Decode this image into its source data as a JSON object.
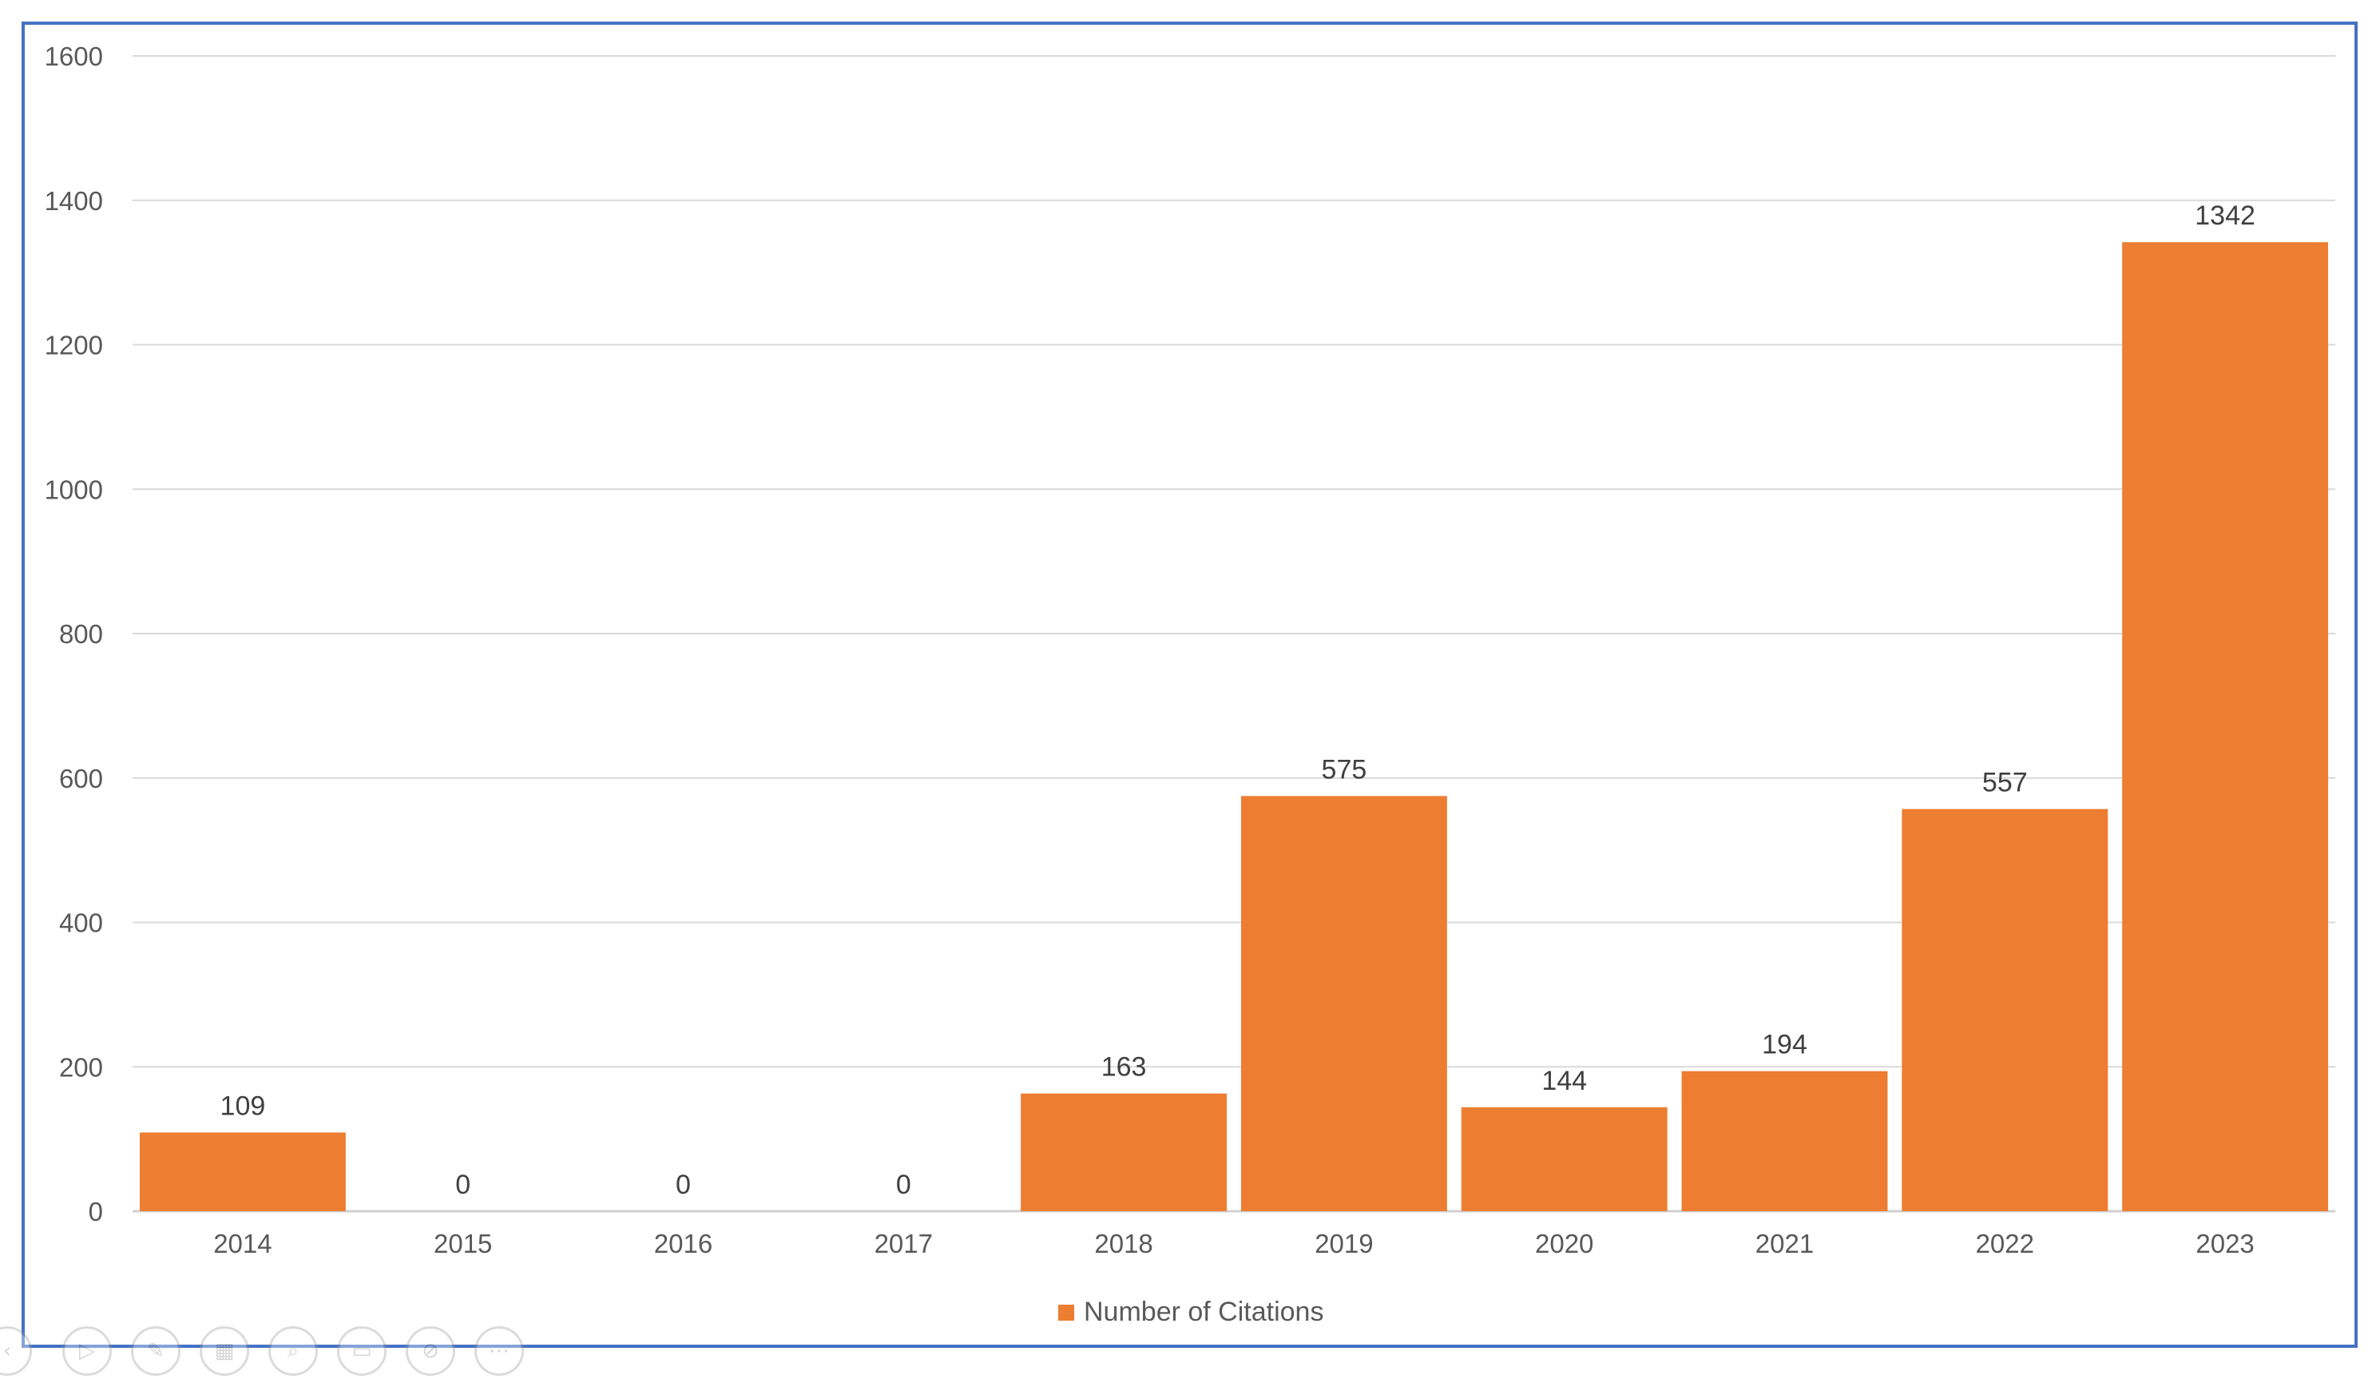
{
  "chart_data": {
    "type": "bar",
    "categories": [
      "2014",
      "2015",
      "2016",
      "2017",
      "2018",
      "2019",
      "2020",
      "2021",
      "2022",
      "2023"
    ],
    "series": [
      {
        "name": "Number of Citations",
        "values": [
          109,
          0,
          0,
          0,
          163,
          575,
          144,
          194,
          557,
          1342
        ],
        "color": "#ed7d31"
      }
    ],
    "y_ticks": [
      "0",
      "200",
      "400",
      "600",
      "800",
      "1000",
      "1200",
      "1400",
      "1600"
    ],
    "ylim": [
      0,
      1600
    ],
    "grid": true,
    "legend_position": "bottom",
    "data_labels": true,
    "border_color": "#4472c4"
  },
  "toolbar": {
    "icons": [
      "back-icon",
      "play-icon",
      "pen-icon",
      "slides-icon",
      "zoom-icon",
      "subtitles-icon",
      "camera-off-icon",
      "more-icon"
    ]
  }
}
